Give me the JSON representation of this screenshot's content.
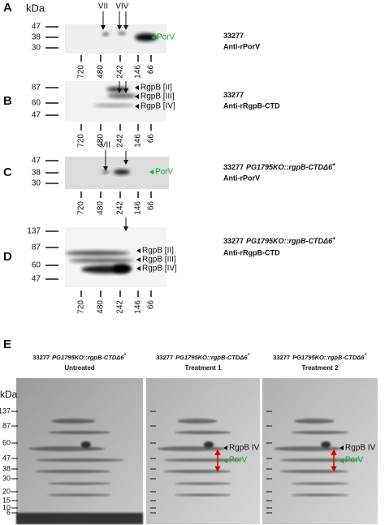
{
  "header": {
    "unit": "kDa"
  },
  "panels": [
    {
      "letter": "A",
      "markers": [
        47,
        38,
        30
      ],
      "arrows": [
        "VII",
        "VI",
        "V"
      ],
      "band_labels": [
        "PorV"
      ],
      "lanes": [
        720,
        480,
        242,
        146,
        66
      ],
      "strain": "33277",
      "antibody": "Anti-rPorV"
    },
    {
      "letter": "B",
      "markers": [
        87,
        60,
        47
      ],
      "band_labels": [
        "RgpB [II]",
        "RgpB [III]",
        "RgpB [IV]"
      ],
      "lanes": [
        720,
        480,
        242,
        146,
        66
      ],
      "strain": "33277",
      "antibody": "Anti-rRgpB-CTD"
    },
    {
      "letter": "C",
      "markers": [
        47,
        38,
        30
      ],
      "arrows": [
        "VII"
      ],
      "band_labels": [
        "PorV"
      ],
      "lanes": [
        720,
        480,
        242,
        146,
        66
      ],
      "strain": "33277",
      "genotype": "PG1795KO::rgpB-CTDΔ6",
      "superscript": "+",
      "antibody": "Anti-rPorV"
    },
    {
      "letter": "D",
      "markers": [
        137,
        87,
        60,
        47
      ],
      "band_labels": [
        "RgpB [II]",
        "RgpB [III]",
        "RgpB [IV]"
      ],
      "lanes": [
        720,
        480,
        242,
        146,
        66
      ],
      "strain": "33277",
      "genotype": "PG1795KO::rgpB-CTDΔ6",
      "superscript": "+",
      "antibody": "Anti-rRgpB-CTD"
    }
  ],
  "panel_e": {
    "letter": "E",
    "unit": "kDa",
    "markers": [
      137,
      87,
      60,
      47,
      38,
      30,
      20,
      15,
      10,
      6
    ],
    "columns": [
      {
        "strain": "33277",
        "genotype": "PG1795KO::rgpB-CTDΔ6",
        "superscript": "+",
        "condition": "Untreated"
      },
      {
        "strain": "33277",
        "genotype": "PG1795KO::rgpB-CTDΔ6",
        "superscript": "+",
        "condition": "Treatment 1",
        "band_labels": [
          "RgpB IV",
          "PorV"
        ]
      },
      {
        "strain": "33277",
        "genotype": "PG1795KO::rgpB-CTDΔ6",
        "superscript": "+",
        "condition": "Treatment 2",
        "band_labels": [
          "RgpB IV",
          "PorV"
        ]
      }
    ]
  }
}
